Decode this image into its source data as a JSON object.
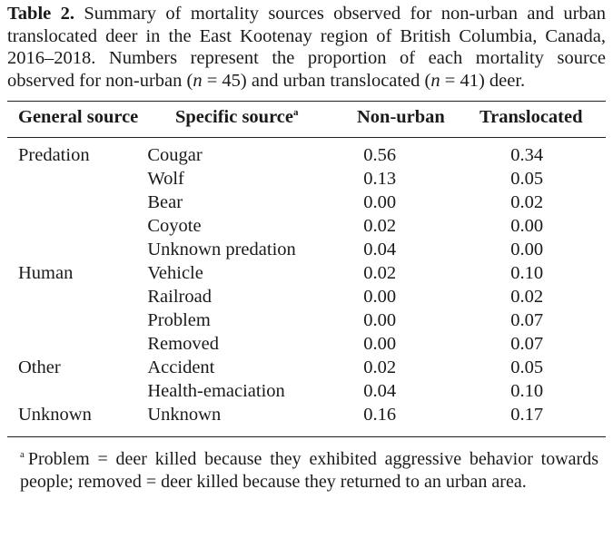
{
  "caption": {
    "label": "Table 2.",
    "text": "Summary of mortality sources observed for non-urban and urban translocated deer in the East Kootenay region of British Columbia, Canada, 2016–2018. Numbers represent the proportion of each mortality source observed for non-urban (",
    "n1_var": "n",
    "n1_val": " = 45",
    "text_mid": ") and urban translocated (",
    "n2_var": "n",
    "n2_val": " = 41",
    "text_end": ") deer."
  },
  "table": {
    "headers": {
      "general": "General source",
      "specific": "Specific source",
      "specific_sup": "a",
      "nonurban": "Non-urban",
      "translocated": "Translocated"
    },
    "rows": [
      {
        "general": "Predation",
        "specific": "Cougar",
        "nonurban": "0.56",
        "translocated": "0.34"
      },
      {
        "general": "",
        "specific": "Wolf",
        "nonurban": "0.13",
        "translocated": "0.05"
      },
      {
        "general": "",
        "specific": "Bear",
        "nonurban": "0.00",
        "translocated": "0.02"
      },
      {
        "general": "",
        "specific": "Coyote",
        "nonurban": "0.02",
        "translocated": "0.00"
      },
      {
        "general": "",
        "specific": "Unknown predation",
        "nonurban": "0.04",
        "translocated": "0.00"
      },
      {
        "general": "Human",
        "specific": "Vehicle",
        "nonurban": "0.02",
        "translocated": "0.10"
      },
      {
        "general": "",
        "specific": "Railroad",
        "nonurban": "0.00",
        "translocated": "0.02"
      },
      {
        "general": "",
        "specific": "Problem",
        "nonurban": "0.00",
        "translocated": "0.07"
      },
      {
        "general": "",
        "specific": "Removed",
        "nonurban": "0.00",
        "translocated": "0.07"
      },
      {
        "general": "Other",
        "specific": "Accident",
        "nonurban": "0.02",
        "translocated": "0.05"
      },
      {
        "general": "",
        "specific": "Health-emaciation",
        "nonurban": "0.04",
        "translocated": "0.10"
      },
      {
        "general": "Unknown",
        "specific": "Unknown",
        "nonurban": "0.16",
        "translocated": "0.17"
      }
    ]
  },
  "footnote": {
    "mark": "a",
    "text": "Problem = deer killed because they exhibited aggressive behavior towards people; removed = deer killed because they returned to an urban area."
  }
}
